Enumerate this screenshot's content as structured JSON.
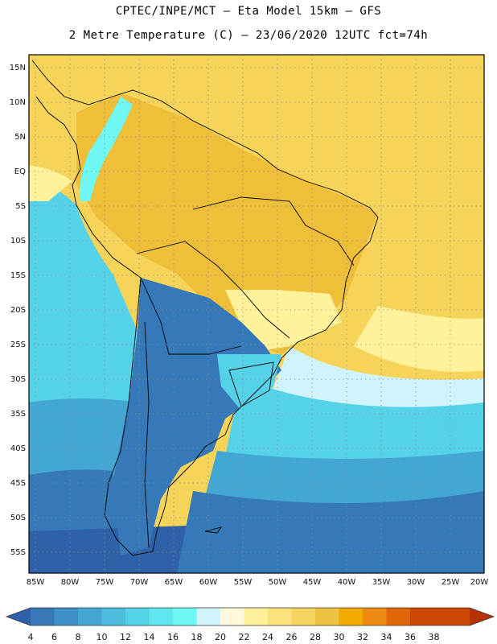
{
  "header": {
    "line1": "CPTEC/INPE/MCT –  Eta Model 15km – GFS",
    "line2": "2 Metre Temperature (C) – 23/06/2020 12UTC fct=74h"
  },
  "axes": {
    "lat_labels": [
      "15N",
      "10N",
      "5N",
      "EQ",
      "5S",
      "10S",
      "15S",
      "20S",
      "25S",
      "30S",
      "35S",
      "40S",
      "45S",
      "50S",
      "55S"
    ],
    "lon_labels": [
      "85W",
      "80W",
      "75W",
      "70W",
      "65W",
      "60W",
      "55W",
      "50W",
      "45W",
      "40W",
      "35W",
      "30W",
      "25W",
      "20W"
    ]
  },
  "colorbar": {
    "labels": [
      "4",
      "6",
      "8",
      "10",
      "12",
      "14",
      "16",
      "18",
      "20",
      "22",
      "24",
      "26",
      "28",
      "30",
      "32",
      "34",
      "36",
      "38"
    ],
    "colors": [
      "#2e61a8",
      "#3579b8",
      "#3d90c5",
      "#44a6d3",
      "#4cbcdf",
      "#55d2e8",
      "#5fe6ef",
      "#6ff7f5",
      "#cff4fb",
      "#fff8dd",
      "#fff29a",
      "#fbe37a",
      "#f4d360",
      "#efc342",
      "#f0aa00",
      "#ec8a14",
      "#e06707",
      "#cc4806",
      "#b53106"
    ]
  },
  "zones": {
    "warm_ocean": "#f6d45a",
    "hot_land": "#efbf3a",
    "mild": "#fff29a",
    "cool_band": "#cff4fb",
    "cold_a": "#55d2e8",
    "cold_b": "#44a6d3",
    "cold_c": "#3579b8",
    "cold_d": "#2e61a8",
    "andes": "#6ff7f5"
  }
}
